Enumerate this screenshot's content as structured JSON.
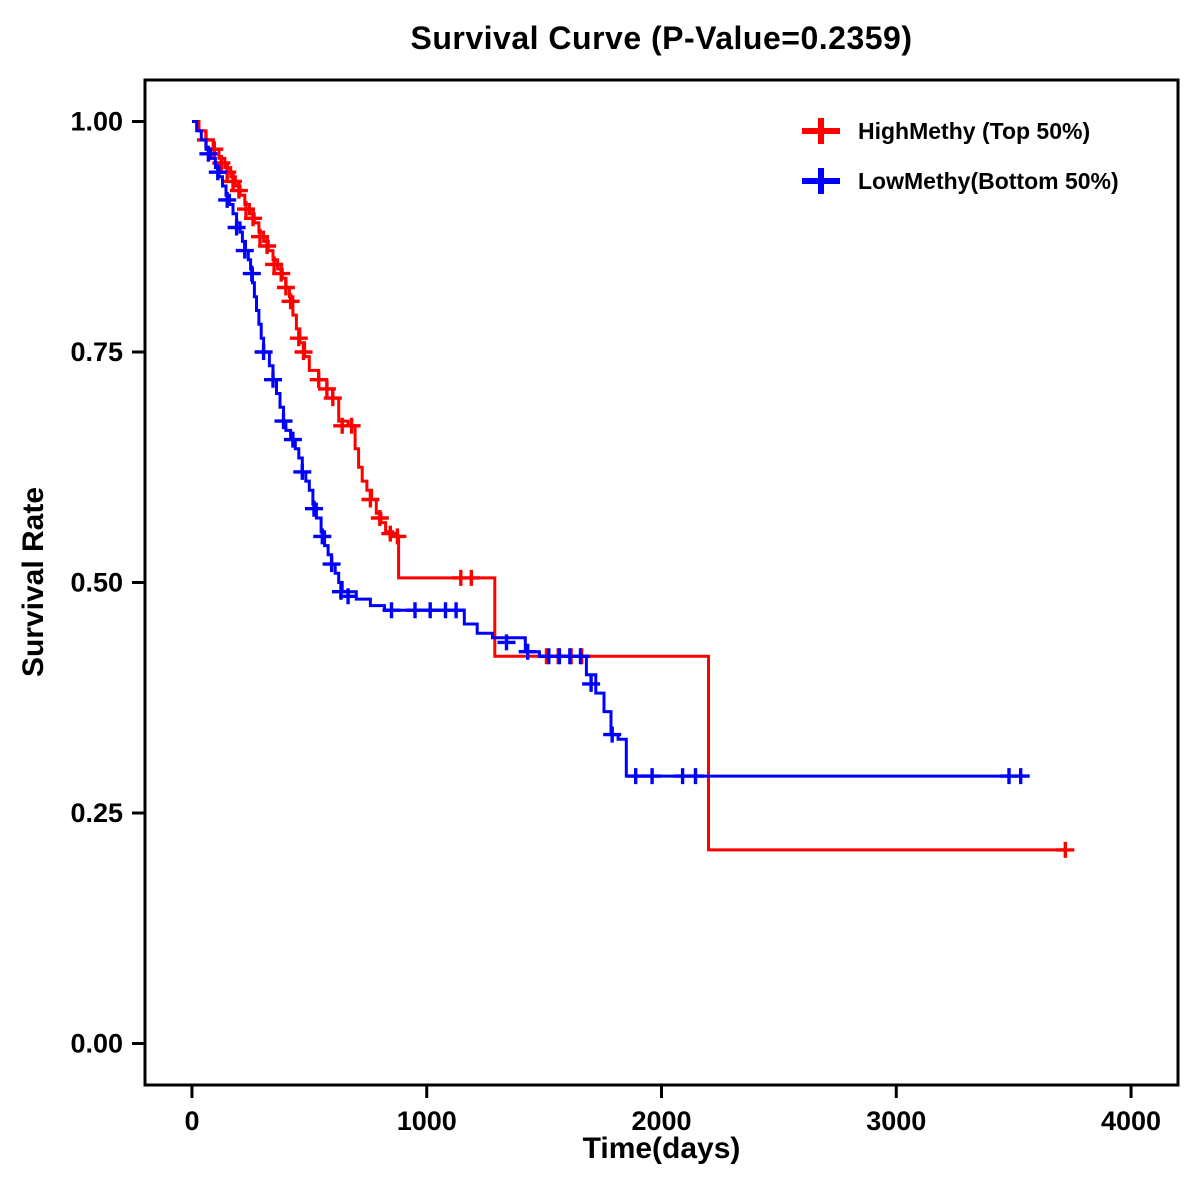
{
  "page": {
    "background": "#ffffff"
  },
  "chart_data": {
    "type": "line",
    "subtype": "kaplan-meier-step-survival",
    "title": "Survival Curve (P-Value=0.2359)",
    "p_value": 0.2359,
    "xlabel": "Time(days)",
    "ylabel": "Survival Rate",
    "xlim": [
      -200,
      4200
    ],
    "ylim": [
      -0.045,
      1.045
    ],
    "grid": false,
    "legend_position": "top-right",
    "axis_color": "#000000",
    "xticks": [
      {
        "v": 0,
        "label": "0"
      },
      {
        "v": 1000,
        "label": "1000"
      },
      {
        "v": 2000,
        "label": "2000"
      },
      {
        "v": 3000,
        "label": "3000"
      },
      {
        "v": 4000,
        "label": "4000"
      }
    ],
    "yticks": [
      {
        "v": 0.0,
        "label": "0.00"
      },
      {
        "v": 0.25,
        "label": "0.25"
      },
      {
        "v": 0.5,
        "label": "0.50"
      },
      {
        "v": 0.75,
        "label": "0.75"
      },
      {
        "v": 1.0,
        "label": "1.00"
      }
    ],
    "series": [
      {
        "name": "HighMethy (Top 50%)",
        "color": "#ff0000",
        "step": "after",
        "points": [
          [
            0,
            1.0
          ],
          [
            30,
            0.99
          ],
          [
            60,
            0.98
          ],
          [
            90,
            0.97
          ],
          [
            115,
            0.96
          ],
          [
            140,
            0.95
          ],
          [
            165,
            0.94
          ],
          [
            185,
            0.93
          ],
          [
            205,
            0.92
          ],
          [
            225,
            0.91
          ],
          [
            245,
            0.9
          ],
          [
            265,
            0.89
          ],
          [
            285,
            0.88
          ],
          [
            305,
            0.87
          ],
          [
            325,
            0.86
          ],
          [
            345,
            0.85
          ],
          [
            365,
            0.84
          ],
          [
            385,
            0.83
          ],
          [
            400,
            0.82
          ],
          [
            415,
            0.81
          ],
          [
            430,
            0.79
          ],
          [
            445,
            0.775
          ],
          [
            460,
            0.76
          ],
          [
            480,
            0.745
          ],
          [
            500,
            0.73
          ],
          [
            540,
            0.72
          ],
          [
            575,
            0.71
          ],
          [
            600,
            0.7
          ],
          [
            625,
            0.675
          ],
          [
            665,
            0.67
          ],
          [
            695,
            0.645
          ],
          [
            710,
            0.625
          ],
          [
            725,
            0.61
          ],
          [
            745,
            0.6
          ],
          [
            765,
            0.59
          ],
          [
            785,
            0.575
          ],
          [
            805,
            0.565
          ],
          [
            825,
            0.555
          ],
          [
            855,
            0.55
          ],
          [
            880,
            0.505
          ],
          [
            1290,
            0.42
          ],
          [
            2200,
            0.21
          ],
          [
            3720,
            0.21
          ]
        ],
        "censors": [
          [
            60,
            0.98
          ],
          [
            95,
            0.97
          ],
          [
            125,
            0.955
          ],
          [
            150,
            0.945
          ],
          [
            175,
            0.935
          ],
          [
            200,
            0.925
          ],
          [
            230,
            0.905
          ],
          [
            260,
            0.895
          ],
          [
            290,
            0.875
          ],
          [
            320,
            0.865
          ],
          [
            350,
            0.845
          ],
          [
            380,
            0.835
          ],
          [
            400,
            0.82
          ],
          [
            420,
            0.805
          ],
          [
            455,
            0.765
          ],
          [
            475,
            0.75
          ],
          [
            540,
            0.72
          ],
          [
            575,
            0.71
          ],
          [
            600,
            0.7
          ],
          [
            640,
            0.67
          ],
          [
            680,
            0.67
          ],
          [
            760,
            0.59
          ],
          [
            800,
            0.57
          ],
          [
            845,
            0.553
          ],
          [
            875,
            0.55
          ],
          [
            1145,
            0.505
          ],
          [
            1190,
            0.505
          ],
          [
            1510,
            0.42
          ],
          [
            1560,
            0.42
          ],
          [
            1615,
            0.42
          ],
          [
            1660,
            0.42
          ],
          [
            3720,
            0.21
          ]
        ]
      },
      {
        "name": "LowMethy(Bottom 50%)",
        "color": "#0000ff",
        "step": "after",
        "points": [
          [
            0,
            1.0
          ],
          [
            20,
            0.99
          ],
          [
            40,
            0.98
          ],
          [
            60,
            0.97
          ],
          [
            80,
            0.96
          ],
          [
            100,
            0.95
          ],
          [
            115,
            0.94
          ],
          [
            130,
            0.93
          ],
          [
            145,
            0.92
          ],
          [
            160,
            0.91
          ],
          [
            175,
            0.9
          ],
          [
            190,
            0.89
          ],
          [
            205,
            0.88
          ],
          [
            215,
            0.87
          ],
          [
            228,
            0.86
          ],
          [
            240,
            0.85
          ],
          [
            250,
            0.84
          ],
          [
            258,
            0.825
          ],
          [
            266,
            0.81
          ],
          [
            275,
            0.795
          ],
          [
            285,
            0.78
          ],
          [
            295,
            0.765
          ],
          [
            305,
            0.75
          ],
          [
            330,
            0.735
          ],
          [
            345,
            0.72
          ],
          [
            360,
            0.705
          ],
          [
            375,
            0.69
          ],
          [
            390,
            0.675
          ],
          [
            400,
            0.665
          ],
          [
            420,
            0.655
          ],
          [
            440,
            0.645
          ],
          [
            455,
            0.635
          ],
          [
            470,
            0.62
          ],
          [
            485,
            0.61
          ],
          [
            500,
            0.6
          ],
          [
            515,
            0.585
          ],
          [
            530,
            0.57
          ],
          [
            550,
            0.555
          ],
          [
            565,
            0.54
          ],
          [
            580,
            0.53
          ],
          [
            595,
            0.52
          ],
          [
            610,
            0.51
          ],
          [
            625,
            0.5
          ],
          [
            640,
            0.49
          ],
          [
            700,
            0.482
          ],
          [
            760,
            0.475
          ],
          [
            820,
            0.47
          ],
          [
            1160,
            0.455
          ],
          [
            1215,
            0.445
          ],
          [
            1280,
            0.44
          ],
          [
            1420,
            0.425
          ],
          [
            1480,
            0.42
          ],
          [
            1680,
            0.4
          ],
          [
            1720,
            0.38
          ],
          [
            1755,
            0.36
          ],
          [
            1785,
            0.335
          ],
          [
            1815,
            0.33
          ],
          [
            1850,
            0.29
          ],
          [
            3530,
            0.29
          ]
        ],
        "censors": [
          [
            70,
            0.965
          ],
          [
            110,
            0.945
          ],
          [
            150,
            0.915
          ],
          [
            190,
            0.885
          ],
          [
            225,
            0.86
          ],
          [
            255,
            0.835
          ],
          [
            305,
            0.75
          ],
          [
            345,
            0.72
          ],
          [
            390,
            0.675
          ],
          [
            430,
            0.655
          ],
          [
            470,
            0.62
          ],
          [
            520,
            0.58
          ],
          [
            555,
            0.55
          ],
          [
            595,
            0.52
          ],
          [
            635,
            0.49
          ],
          [
            665,
            0.485
          ],
          [
            850,
            0.47
          ],
          [
            950,
            0.47
          ],
          [
            1015,
            0.47
          ],
          [
            1080,
            0.47
          ],
          [
            1125,
            0.47
          ],
          [
            1340,
            0.435
          ],
          [
            1430,
            0.425
          ],
          [
            1520,
            0.42
          ],
          [
            1565,
            0.42
          ],
          [
            1610,
            0.42
          ],
          [
            1655,
            0.42
          ],
          [
            1700,
            0.39
          ],
          [
            1790,
            0.335
          ],
          [
            1890,
            0.29
          ],
          [
            1960,
            0.29
          ],
          [
            2090,
            0.29
          ],
          [
            2145,
            0.29
          ],
          [
            3480,
            0.29
          ],
          [
            3530,
            0.29
          ]
        ]
      }
    ]
  }
}
